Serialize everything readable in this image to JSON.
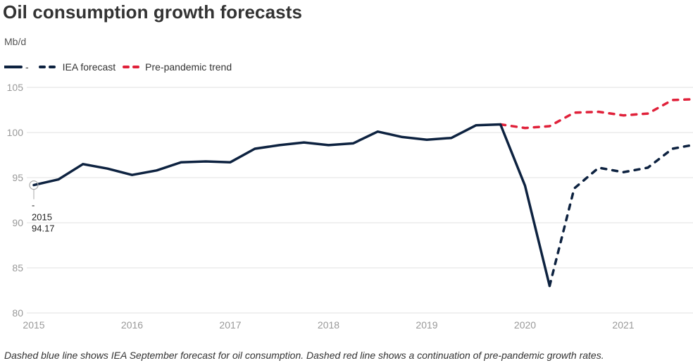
{
  "header": {
    "title": "Oil consumption growth forecasts",
    "unit": "Mb/d"
  },
  "legend": [
    {
      "label": "-",
      "color": "#0d2240",
      "style": "solid"
    },
    {
      "label": "IEA forecast",
      "color": "#0d2240",
      "style": "dotted"
    },
    {
      "label": "Pre-pandemic trend",
      "color": "#e0213a",
      "style": "dotted"
    }
  ],
  "annotation": {
    "dash": "-",
    "year": "2015",
    "value": "94.17"
  },
  "caption": "Dashed blue line shows IEA September forecast for oil consumption. Dashed red line shows a continuation of pre-pandemic growth rates.",
  "chart_data": {
    "type": "line",
    "title": "Oil consumption growth forecasts",
    "ylabel": "Mb/d",
    "xlabel": "",
    "ylim": [
      80,
      105
    ],
    "xlim": [
      2015,
      2021.72
    ],
    "yticks": [
      80,
      85,
      90,
      95,
      100,
      105
    ],
    "xticks": [
      "2015",
      "2016",
      "2017",
      "2018",
      "2019",
      "2020",
      "2021"
    ],
    "grid": true,
    "legend_position": "top-left",
    "series": [
      {
        "name": "-",
        "color": "#0d2240",
        "style": "solid",
        "x": [
          2015.0,
          2015.25,
          2015.5,
          2015.75,
          2016.0,
          2016.25,
          2016.5,
          2016.75,
          2017.0,
          2017.25,
          2017.5,
          2017.75,
          2018.0,
          2018.25,
          2018.5,
          2018.75,
          2019.0,
          2019.25,
          2019.5,
          2019.75,
          2020.0,
          2020.25
        ],
        "values": [
          94.17,
          94.8,
          96.5,
          96.0,
          95.3,
          95.8,
          96.7,
          96.8,
          96.7,
          98.2,
          98.6,
          98.9,
          98.6,
          98.8,
          100.1,
          99.5,
          99.2,
          99.4,
          100.8,
          100.9,
          94.1,
          83.0
        ]
      },
      {
        "name": "IEA forecast",
        "color": "#0d2240",
        "style": "dotted",
        "x": [
          2020.25,
          2020.5,
          2020.75,
          2021.0,
          2021.25,
          2021.5,
          2021.75
        ],
        "values": [
          83.0,
          93.8,
          96.1,
          95.6,
          96.1,
          98.2,
          98.7
        ]
      },
      {
        "name": "Pre-pandemic trend",
        "color": "#e0213a",
        "style": "dotted",
        "x": [
          2019.75,
          2020.0,
          2020.25,
          2020.5,
          2020.75,
          2021.0,
          2021.25,
          2021.5,
          2021.75
        ],
        "values": [
          100.9,
          100.5,
          100.7,
          102.2,
          102.3,
          101.9,
          102.1,
          103.6,
          103.7
        ]
      }
    ]
  }
}
